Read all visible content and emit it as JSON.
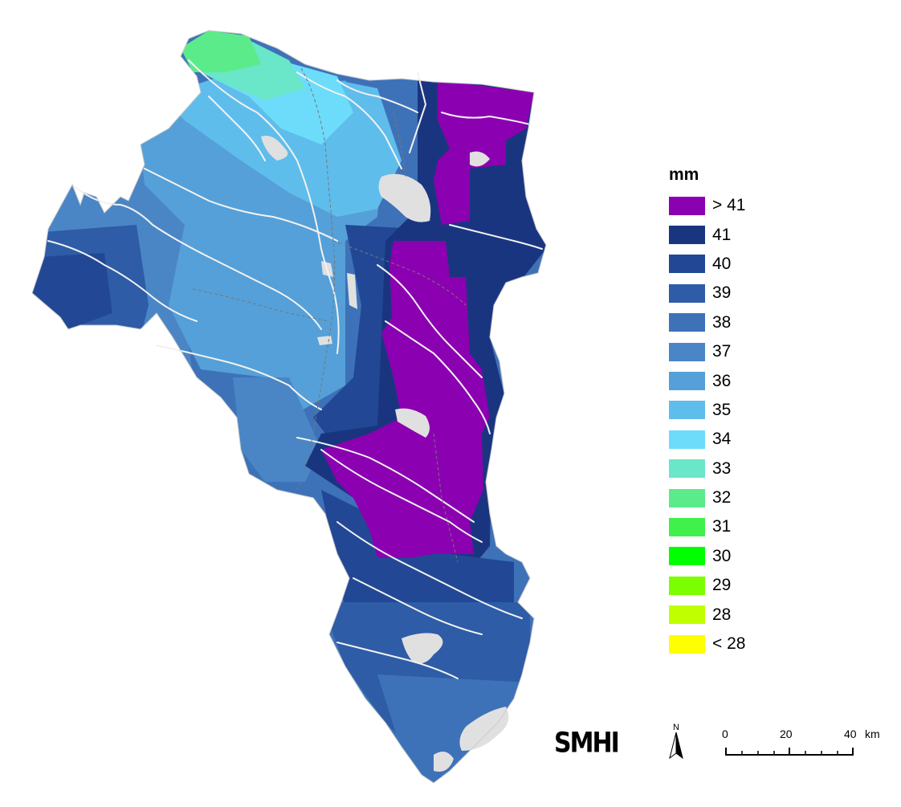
{
  "legend": {
    "title": "mm",
    "classes": [
      {
        "label": "> 41",
        "color": "#8B00B0"
      },
      {
        "label": "41",
        "color": "#1A3580"
      },
      {
        "label": "40",
        "color": "#224895"
      },
      {
        "label": "39",
        "color": "#2E5CA6"
      },
      {
        "label": "38",
        "color": "#3E72B8"
      },
      {
        "label": "37",
        "color": "#4A86C6"
      },
      {
        "label": "36",
        "color": "#55A0D8"
      },
      {
        "label": "35",
        "color": "#5FBDEB"
      },
      {
        "label": "34",
        "color": "#6CDCFA"
      },
      {
        "label": "33",
        "color": "#6AE6C8"
      },
      {
        "label": "32",
        "color": "#5CEB8A"
      },
      {
        "label": "31",
        "color": "#41F04A"
      },
      {
        "label": "30",
        "color": "#00FF00"
      },
      {
        "label": "29",
        "color": "#7BFF00"
      },
      {
        "label": "28",
        "color": "#C0FF00"
      },
      {
        "label": "< 28",
        "color": "#FFFF00"
      }
    ]
  },
  "logo": "SMHI",
  "north_arrow": {
    "letter": "N"
  },
  "scalebar": {
    "labels": [
      "0",
      "20",
      "40"
    ],
    "unit": "km"
  },
  "map_colors": {
    "lake": "#E0E0E0",
    "river": "#F2F2F2",
    "border": "#777777"
  }
}
